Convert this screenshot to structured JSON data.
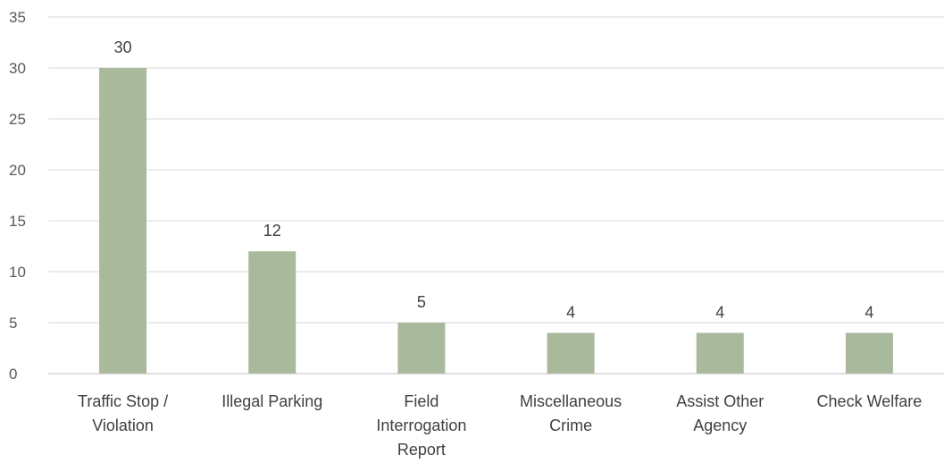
{
  "chart_data": {
    "type": "bar",
    "categories": [
      [
        "Traffic Stop /",
        "Violation"
      ],
      [
        "Illegal Parking"
      ],
      [
        "Field",
        "Interrogation",
        "Report"
      ],
      [
        "Miscellaneous",
        "Crime"
      ],
      [
        "Assist Other",
        "Agency"
      ],
      [
        "Check Welfare"
      ]
    ],
    "values": [
      30,
      12,
      5,
      4,
      4,
      4
    ],
    "ylim": [
      0,
      35
    ],
    "yticks": [
      0,
      5,
      10,
      15,
      20,
      25,
      30,
      35
    ],
    "grid": true,
    "bar_color": "#a9b99b",
    "data_labels": true
  }
}
